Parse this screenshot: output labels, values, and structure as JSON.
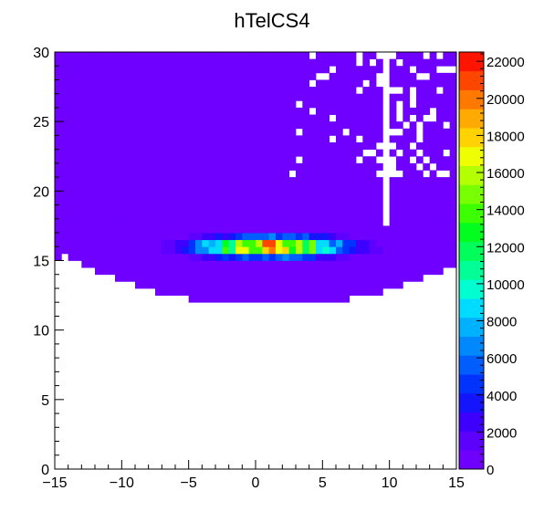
{
  "chart_data": {
    "type": "heatmap",
    "title": "hTelCS4",
    "xlabel": "",
    "ylabel": "",
    "xlim": [
      -15,
      15
    ],
    "ylim": [
      0,
      30
    ],
    "x_ticks": [
      "−15",
      "−10",
      "−5",
      "0",
      "5",
      "10",
      "15"
    ],
    "y_ticks": [
      "0",
      "5",
      "10",
      "15",
      "20",
      "25",
      "30"
    ],
    "z_range": [
      0,
      22500
    ],
    "z_ticks": [
      "0",
      "2000",
      "4000",
      "6000",
      "8000",
      "10000",
      "12000",
      "14000",
      "16000",
      "18000",
      "20000",
      "22000"
    ],
    "grid": false,
    "bin_width_x": 0.5,
    "bin_width_y": 0.5,
    "core": {
      "center_x": 1.0,
      "center_y": 16.0,
      "peak_value": 22000,
      "x_spread": 5.5,
      "y_spread": 0.75
    },
    "filled_region_bounds_y": [
      11.5,
      30
    ],
    "palette": [
      "#6f00ff",
      "#5c00ff",
      "#3d00ff",
      "#1414ff",
      "#0033ff",
      "#005dff",
      "#0088ff",
      "#00b1ff",
      "#00dcff",
      "#00ffd0",
      "#00ff96",
      "#00ff5a",
      "#00ff1e",
      "#3cff00",
      "#78ff00",
      "#b4ff00",
      "#f0ff00",
      "#ffd200",
      "#ffaa00",
      "#ff7800",
      "#ff4600",
      "#ff1400"
    ]
  }
}
